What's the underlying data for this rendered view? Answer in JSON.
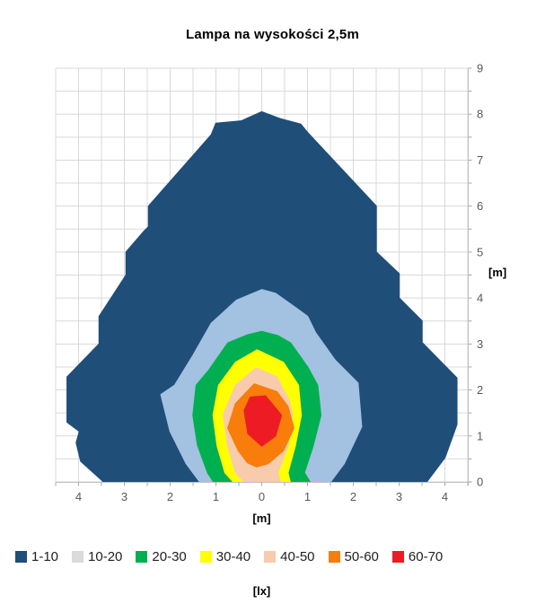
{
  "chart_data": {
    "type": "filled-contour",
    "title": "Lampa na wysokości 2,5m",
    "xlabel": "[m]",
    "ylabel": "[m]",
    "legend_label": "[lx]",
    "xlim": [
      -4.5,
      4.5
    ],
    "ylim": [
      0,
      9
    ],
    "grid": true,
    "grid_step": 0.5,
    "legend_position": "bottom",
    "x_major_ticks": [
      -4,
      -3,
      -2,
      -1,
      0,
      1,
      2,
      3,
      4
    ],
    "x_tick_labels": [
      "4",
      "3",
      "2",
      "1",
      "0",
      "1",
      "2",
      "3",
      "4"
    ],
    "y_major_ticks": [
      0,
      1,
      2,
      3,
      4,
      5,
      6,
      7,
      8,
      9
    ],
    "y_tick_labels": [
      "0",
      "1",
      "2",
      "3",
      "4",
      "5",
      "6",
      "7",
      "8",
      "9"
    ],
    "bands": [
      {
        "label": "1-10",
        "swatch_color": "#1F4E79",
        "plot_color": "#1F4E79",
        "polygon": [
          [
            -3.45,
            0
          ],
          [
            -3.95,
            0.45
          ],
          [
            -4.05,
            0.85
          ],
          [
            -3.98,
            1.1
          ],
          [
            -4.25,
            1.3
          ],
          [
            -4.25,
            2.28
          ],
          [
            -3.55,
            3.0
          ],
          [
            -3.55,
            3.6
          ],
          [
            -2.96,
            4.5
          ],
          [
            -2.96,
            5.0
          ],
          [
            -2.57,
            5.45
          ],
          [
            -2.47,
            5.55
          ],
          [
            -2.47,
            6.0
          ],
          [
            -1.1,
            7.55
          ],
          [
            -1.0,
            7.8
          ],
          [
            -0.45,
            7.85
          ],
          [
            0,
            8.05
          ],
          [
            0.4,
            7.9
          ],
          [
            0.85,
            7.78
          ],
          [
            1.0,
            7.6
          ],
          [
            2.5,
            6.0
          ],
          [
            2.5,
            5.0
          ],
          [
            3.0,
            4.53
          ],
          [
            3.0,
            4.0
          ],
          [
            3.5,
            3.5
          ],
          [
            3.5,
            3.03
          ],
          [
            4.26,
            2.26
          ],
          [
            4.26,
            1.25
          ],
          [
            4.0,
            0.53
          ],
          [
            3.6,
            0
          ]
        ]
      },
      {
        "label": "10-20",
        "swatch_color": "#DBDBDB",
        "plot_color": "#A3C1E0",
        "polygon": [
          [
            -1.35,
            0
          ],
          [
            -1.65,
            0.4
          ],
          [
            -2.0,
            1.1
          ],
          [
            -2.2,
            1.9
          ],
          [
            -1.9,
            2.1
          ],
          [
            -1.5,
            2.75
          ],
          [
            -1.1,
            3.45
          ],
          [
            -0.55,
            3.95
          ],
          [
            0,
            4.18
          ],
          [
            0.3,
            4.1
          ],
          [
            0.75,
            3.78
          ],
          [
            1.0,
            3.6
          ],
          [
            1.17,
            3.25
          ],
          [
            1.6,
            2.65
          ],
          [
            2.1,
            2.15
          ],
          [
            2.18,
            1.2
          ],
          [
            1.8,
            0.4
          ],
          [
            1.5,
            0
          ]
        ]
      },
      {
        "label": "20-30",
        "swatch_color": "#00B050",
        "plot_color": "#00B050",
        "polygon": [
          [
            -1.05,
            0
          ],
          [
            -1.18,
            0.2
          ],
          [
            -1.4,
            0.8
          ],
          [
            -1.5,
            1.45
          ],
          [
            -1.43,
            2.1
          ],
          [
            -1.16,
            2.42
          ],
          [
            -0.74,
            3.02
          ],
          [
            -0.3,
            3.2
          ],
          [
            0,
            3.27
          ],
          [
            0.35,
            3.18
          ],
          [
            0.63,
            3.02
          ],
          [
            1.0,
            2.5
          ],
          [
            1.22,
            2.1
          ],
          [
            1.29,
            1.45
          ],
          [
            1.12,
            0.78
          ],
          [
            0.93,
            0.2
          ],
          [
            1.05,
            0
          ]
        ]
      },
      {
        "label": "30-40",
        "swatch_color": "#FFFF00",
        "plot_color": "#FFFF00",
        "polygon": [
          [
            -0.62,
            0
          ],
          [
            -0.8,
            0.2
          ],
          [
            -0.97,
            0.78
          ],
          [
            -1.06,
            1.45
          ],
          [
            -0.94,
            2.1
          ],
          [
            -0.57,
            2.6
          ],
          [
            -0.1,
            2.87
          ],
          [
            0.47,
            2.6
          ],
          [
            0.8,
            2.1
          ],
          [
            0.86,
            1.45
          ],
          [
            0.73,
            0.78
          ],
          [
            0.57,
            0.2
          ],
          [
            0.62,
            0
          ]
        ]
      },
      {
        "label": "40-50",
        "swatch_color": "#F8CBAD",
        "plot_color": "#F8CBAD",
        "polygon": [
          [
            -0.38,
            0
          ],
          [
            -0.57,
            0.2
          ],
          [
            -0.74,
            0.78
          ],
          [
            -0.84,
            1.45
          ],
          [
            -0.57,
            2.1
          ],
          [
            -0.12,
            2.48
          ],
          [
            0.33,
            2.28
          ],
          [
            0.6,
            1.76
          ],
          [
            0.67,
            1.45
          ],
          [
            0.57,
            0.78
          ],
          [
            0.35,
            0.2
          ],
          [
            0.4,
            0
          ]
        ]
      },
      {
        "label": "50-60",
        "swatch_color": "#F57E0F",
        "plot_color": "#F87D0A",
        "polygon": [
          [
            -0.12,
            0.33
          ],
          [
            -0.31,
            0.42
          ],
          [
            -0.51,
            0.68
          ],
          [
            -0.74,
            1.17
          ],
          [
            -0.57,
            1.7
          ],
          [
            -0.16,
            2.13
          ],
          [
            0.33,
            1.96
          ],
          [
            0.57,
            1.64
          ],
          [
            0.7,
            1.17
          ],
          [
            0.47,
            0.68
          ],
          [
            0.14,
            0.4
          ]
        ]
      },
      {
        "label": "60-70",
        "swatch_color": "#ED1C24",
        "plot_color": "#ED1C24",
        "polygon": [
          [
            -0.25,
            1.84
          ],
          [
            0.08,
            1.87
          ],
          [
            0.43,
            1.45
          ],
          [
            0.3,
            1.0
          ],
          [
            0,
            0.78
          ],
          [
            -0.3,
            1.05
          ],
          [
            -0.38,
            1.55
          ]
        ]
      }
    ]
  },
  "colors": {
    "grid": "#D9D9D9",
    "axis_line": "#BFBFBF",
    "tick": "#A6A6A6",
    "tick_label": "#595959",
    "background": "#FFFFFF"
  }
}
